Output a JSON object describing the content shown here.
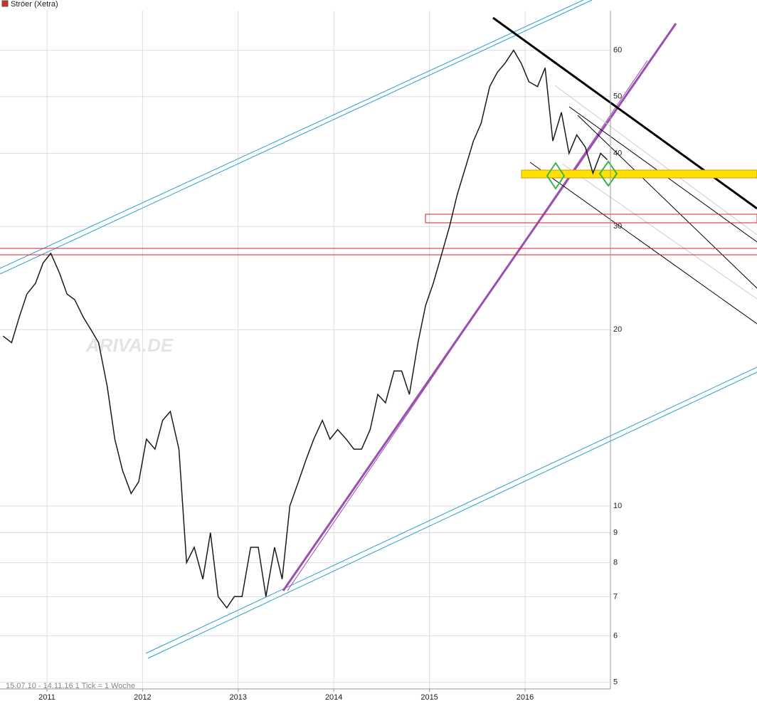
{
  "chart_data": {
    "type": "line",
    "title": "Ströer (Xetra)",
    "subtitle": "15.07.10 - 14.11.16   1 Tick = 1 Woche",
    "watermark": "ARIVA.DE",
    "log_scale": true,
    "grid": true,
    "xlim": [
      2010.509,
      2016.893
    ],
    "xticks": [
      2011,
      2012,
      2013,
      2014,
      2015,
      2016
    ],
    "ylim": [
      4.87,
      70.1
    ],
    "yticks": [
      5,
      6,
      7,
      8,
      9,
      10,
      20,
      30,
      40,
      50,
      60
    ],
    "x": [
      2010.54,
      2010.63,
      2010.71,
      2010.79,
      2010.88,
      2010.96,
      2011.04,
      2011.13,
      2011.21,
      2011.29,
      2011.38,
      2011.46,
      2011.54,
      2011.63,
      2011.71,
      2011.79,
      2011.88,
      2011.96,
      2012.04,
      2012.13,
      2012.21,
      2012.29,
      2012.38,
      2012.46,
      2012.54,
      2012.63,
      2012.71,
      2012.79,
      2012.88,
      2012.96,
      2013.04,
      2013.13,
      2013.21,
      2013.29,
      2013.38,
      2013.46,
      2013.54,
      2013.63,
      2013.71,
      2013.79,
      2013.88,
      2013.96,
      2014.04,
      2014.13,
      2014.21,
      2014.29,
      2014.38,
      2014.46,
      2014.54,
      2014.63,
      2014.71,
      2014.79,
      2014.88,
      2014.96,
      2015.04,
      2015.13,
      2015.21,
      2015.29,
      2015.38,
      2015.46,
      2015.54,
      2015.63,
      2015.71,
      2015.79,
      2015.88,
      2015.96,
      2016.04,
      2016.13,
      2016.21,
      2016.29,
      2016.38,
      2016.46,
      2016.54,
      2016.63,
      2016.71,
      2016.79,
      2016.86
    ],
    "series": [
      {
        "name": "Ströer (Xetra)",
        "color": "#1a1a1a",
        "values": [
          19.5,
          19,
          21,
          23,
          24,
          26,
          27,
          25,
          23,
          22.5,
          21,
          20,
          19,
          16,
          13,
          11.5,
          10.5,
          11,
          13,
          12.5,
          14,
          14.5,
          12.5,
          8,
          8.5,
          7.5,
          9,
          7,
          6.7,
          7,
          7,
          8.5,
          8.5,
          7,
          8.5,
          7.5,
          10,
          11,
          12,
          13,
          14,
          13,
          13.5,
          13,
          12.5,
          12.5,
          13.5,
          15.5,
          15,
          17,
          17,
          15.5,
          19,
          22,
          24,
          27,
          30,
          34,
          38,
          42,
          45,
          52,
          55,
          57,
          60,
          57,
          53,
          52,
          56,
          42,
          47,
          40,
          43,
          41,
          37,
          40,
          39
        ]
      }
    ]
  }
}
